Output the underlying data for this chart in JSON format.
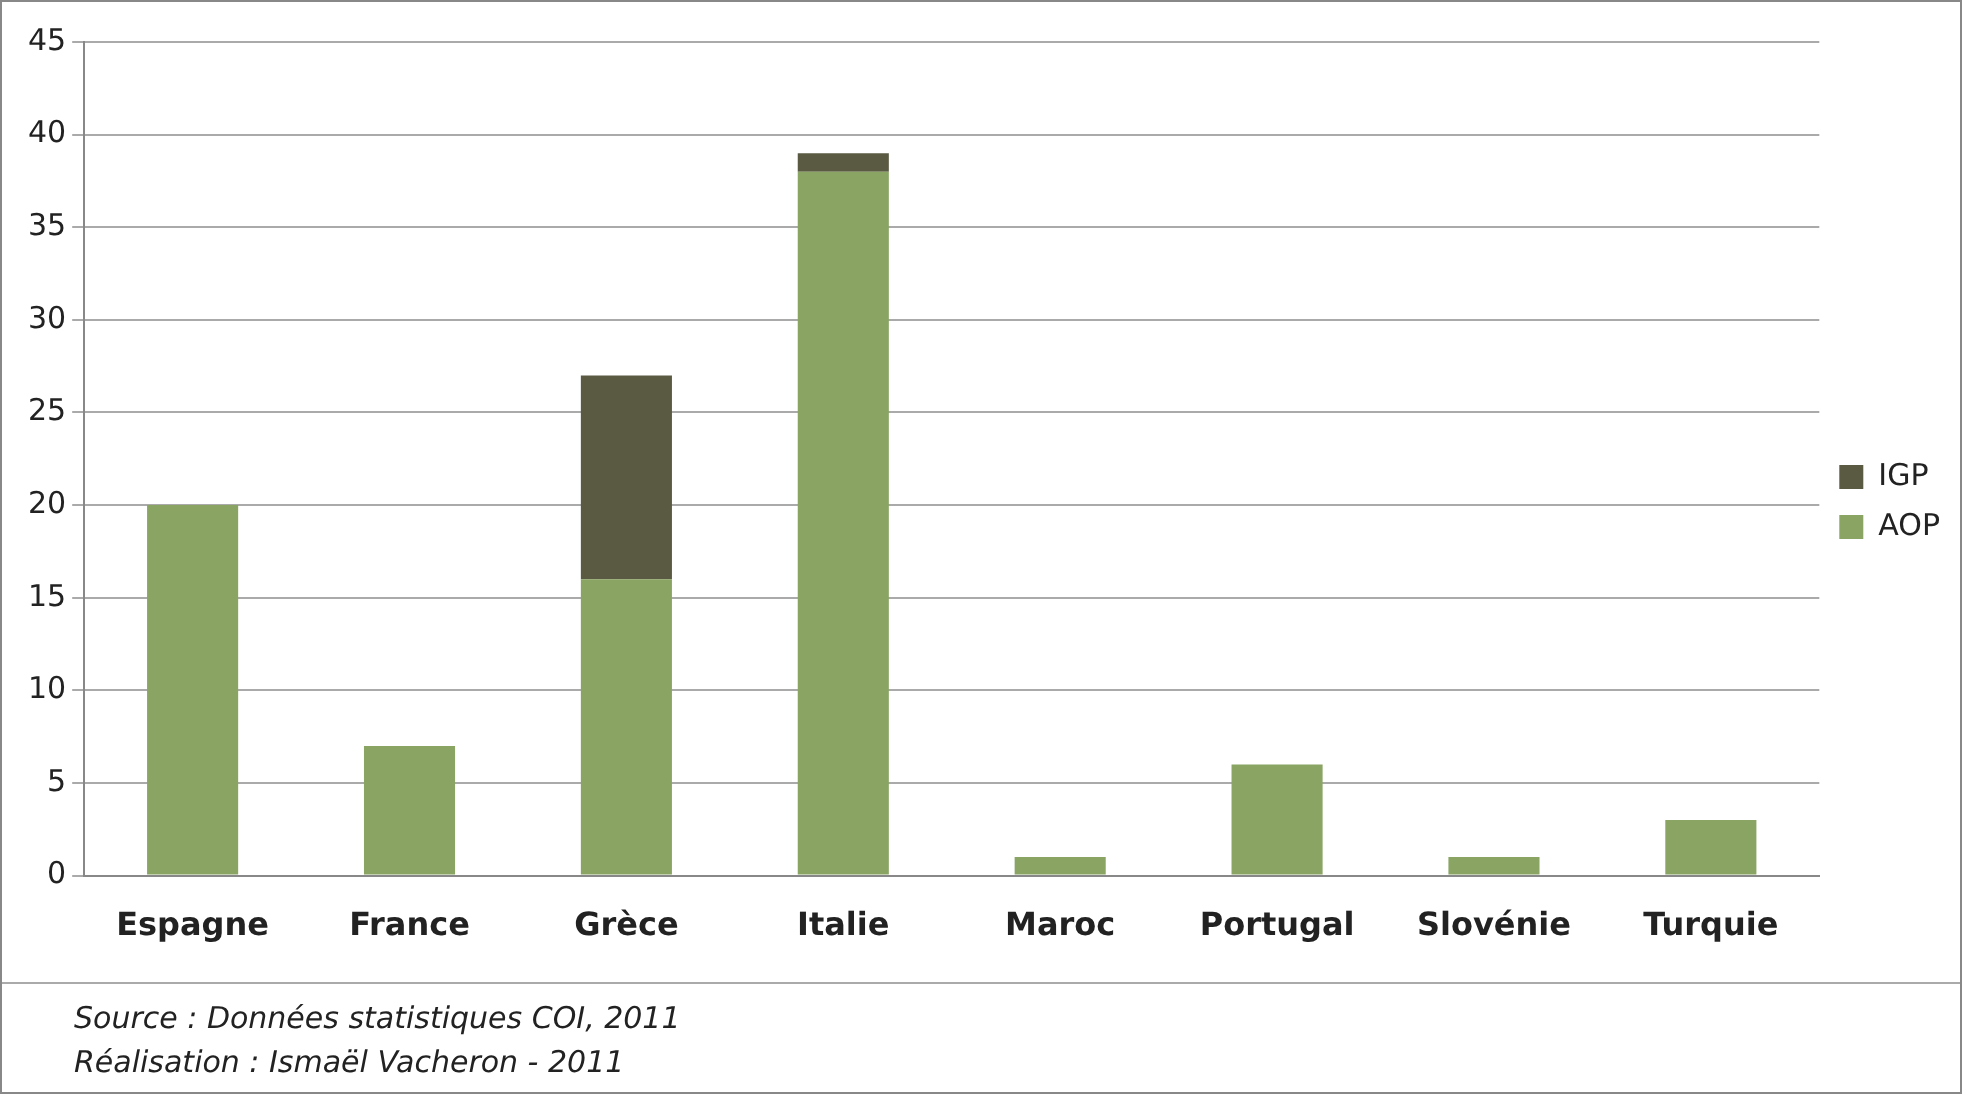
{
  "chart_data": {
    "type": "bar",
    "stacked": true,
    "categories": [
      "Espagne",
      "France",
      "Grèce",
      "Italie",
      "Maroc",
      "Portugal",
      "Slovénie",
      "Turquie"
    ],
    "series": [
      {
        "name": "AOP",
        "color": "#8aa464",
        "values": [
          20,
          7,
          16,
          38,
          1,
          6,
          1,
          3
        ]
      },
      {
        "name": "IGP",
        "color": "#5a5a42",
        "values": [
          0,
          0,
          11,
          1,
          0,
          0,
          0,
          0
        ]
      }
    ],
    "ylim": [
      0,
      45
    ],
    "yticks": [
      0,
      5,
      10,
      15,
      20,
      25,
      30,
      35,
      40,
      45
    ],
    "grid": "y",
    "legend": "right",
    "annotations": [
      "Source : Données statistiques COI, 2011",
      "Réalisation : Ismaël Vacheron - 2011"
    ]
  }
}
